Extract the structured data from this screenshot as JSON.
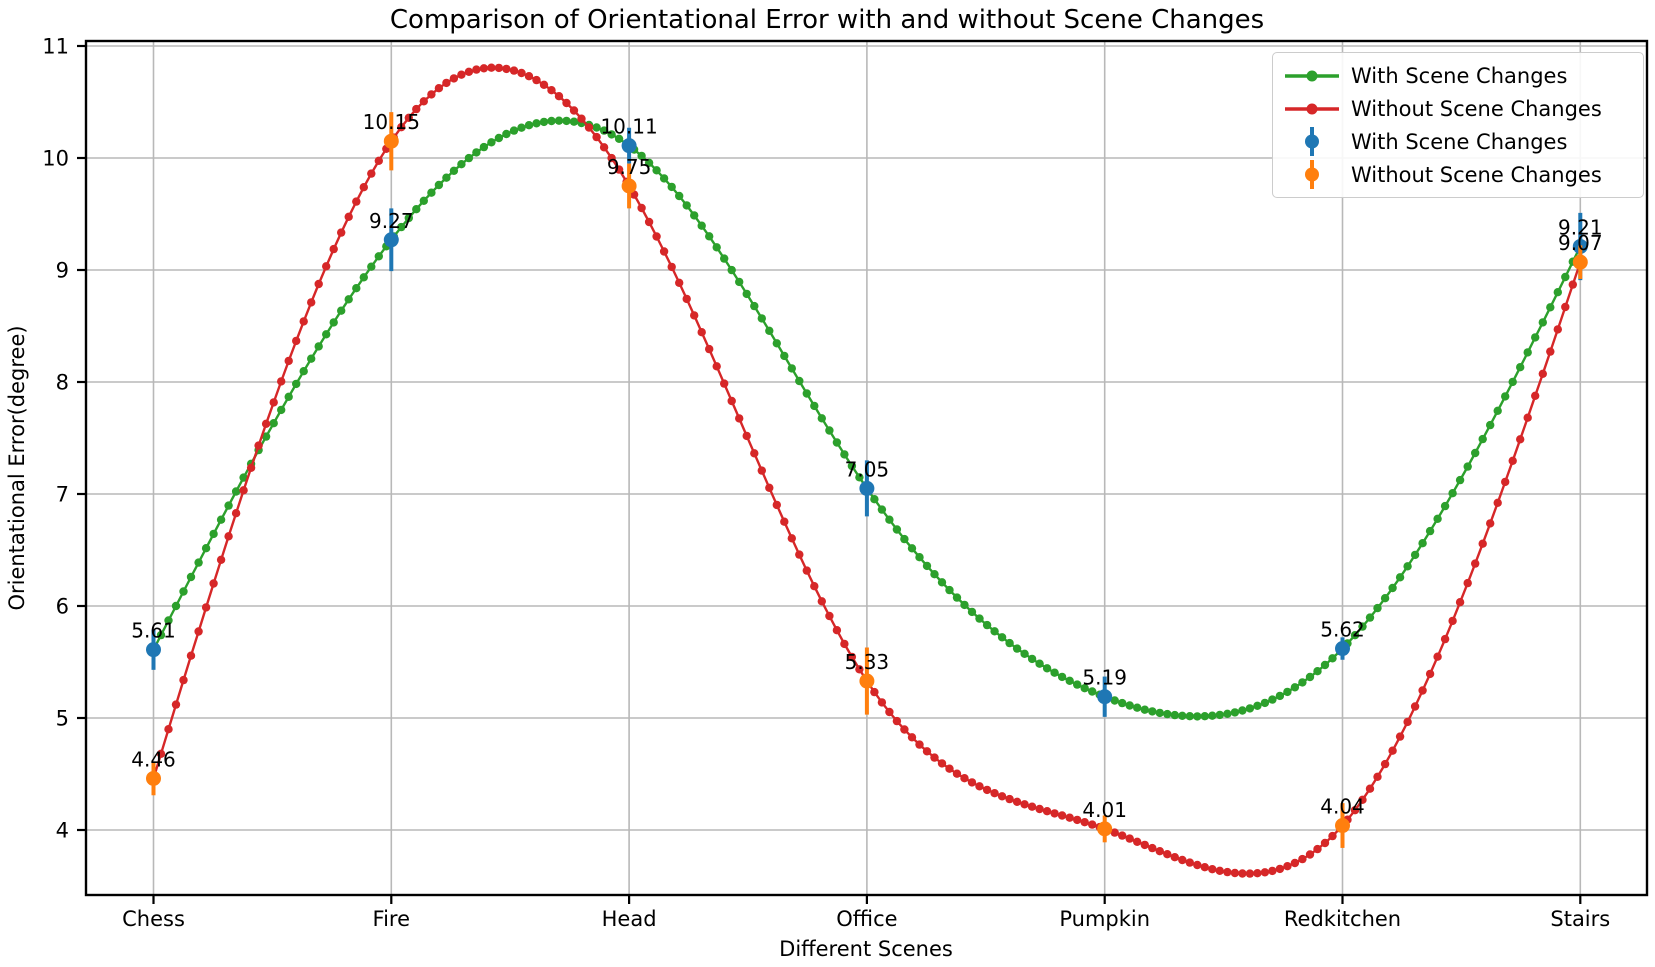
{
  "chart_data": {
    "type": "line",
    "title": "Comparison of Orientational Error with and without Scene Changes",
    "xlabel": "Different Scenes",
    "ylabel": "Orientational Error(degree)",
    "categories": [
      "Chess",
      "Fire",
      "Head",
      "Office",
      "Pumpkin",
      "Redkitchen",
      "Stairs"
    ],
    "y_ticks": [
      4,
      5,
      6,
      7,
      8,
      9,
      10,
      11
    ],
    "ylim": [
      3.42,
      11.05
    ],
    "grid": true,
    "legend_position": "upper right",
    "series": [
      {
        "name": "With Scene Changes",
        "style": "smooth-beaded-curve",
        "color": "#2ca02c",
        "values": [
          5.61,
          9.27,
          10.11,
          7.05,
          5.19,
          5.62,
          9.21
        ]
      },
      {
        "name": "Without Scene Changes",
        "style": "smooth-beaded-curve",
        "color": "#d62728",
        "values": [
          4.46,
          10.15,
          9.75,
          5.33,
          4.01,
          4.04,
          9.07
        ]
      },
      {
        "name": "With Scene Changes",
        "style": "errorbar-markers",
        "color": "#1f77b4",
        "values": [
          5.61,
          9.27,
          10.11,
          7.05,
          5.19,
          5.62,
          9.21
        ],
        "errors": [
          0.18,
          0.28,
          0.16,
          0.25,
          0.18,
          0.1,
          0.3
        ],
        "labels": [
          "5.61",
          "9.27",
          "10.11",
          "7.05",
          "5.19",
          "5.62",
          "9.21"
        ]
      },
      {
        "name": "Without Scene Changes",
        "style": "errorbar-markers",
        "color": "#ff7f0e",
        "values": [
          4.46,
          10.15,
          9.75,
          5.33,
          4.01,
          4.04,
          9.07
        ],
        "errors": [
          0.15,
          0.26,
          0.2,
          0.3,
          0.12,
          0.2,
          0.15
        ],
        "labels": [
          "4.46",
          "10.15",
          "9.75",
          "5.33",
          "4.01",
          "4.04",
          "9.07"
        ]
      }
    ],
    "legend": [
      "With Scene Changes",
      "Without Scene Changes",
      "With Scene Changes",
      "Without Scene Changes"
    ]
  },
  "style": {
    "grid_color": "#b8b8b8",
    "spine_color": "#000000",
    "background": "#ffffff"
  }
}
